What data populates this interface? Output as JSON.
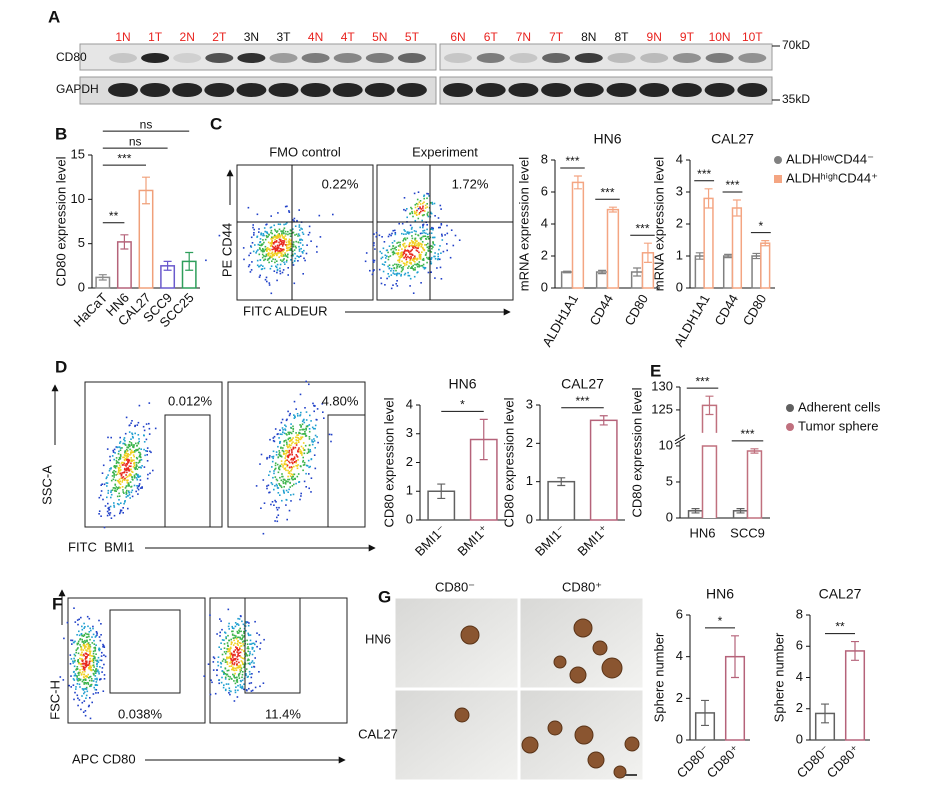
{
  "panel_labels": [
    "A",
    "B",
    "C",
    "D",
    "E",
    "F",
    "G"
  ],
  "blot": {
    "lanes": [
      [
        {
          "label": "1N",
          "color": "#e8231f"
        },
        {
          "label": "1T",
          "color": "#e8231f"
        },
        {
          "label": "2N",
          "color": "#e8231f"
        },
        {
          "label": "2T",
          "color": "#e8231f"
        },
        {
          "label": "3N",
          "color": "#111111"
        },
        {
          "label": "3T",
          "color": "#111111"
        },
        {
          "label": "4N",
          "color": "#e8231f"
        },
        {
          "label": "4T",
          "color": "#e8231f"
        },
        {
          "label": "5N",
          "color": "#e8231f"
        },
        {
          "label": "5T",
          "color": "#e8231f"
        }
      ],
      [
        {
          "label": "6N",
          "color": "#e8231f"
        },
        {
          "label": "6T",
          "color": "#e8231f"
        },
        {
          "label": "7N",
          "color": "#e8231f"
        },
        {
          "label": "7T",
          "color": "#e8231f"
        },
        {
          "label": "8N",
          "color": "#111111"
        },
        {
          "label": "8T",
          "color": "#111111"
        },
        {
          "label": "9N",
          "color": "#e8231f"
        },
        {
          "label": "9T",
          "color": "#e8231f"
        },
        {
          "label": "10N",
          "color": "#e8231f"
        },
        {
          "label": "10T",
          "color": "#e8231f"
        }
      ]
    ],
    "rows": [
      "CD80",
      "GAPDH"
    ],
    "size_markers": [
      "70kD",
      "35kD"
    ]
  },
  "flow": [
    {
      "y_axis": "PE CD44",
      "x_axis": "FITC ALDEUR",
      "plots": [
        {
          "title": "FMO control",
          "percent": "0.22%"
        },
        {
          "title": "Experiment",
          "percent": "1.72%"
        }
      ]
    },
    {
      "y_axis": "SSC-A",
      "x_axis": "FITC  BMI1",
      "plots": [
        {
          "percent": "0.012%"
        },
        {
          "percent": "4.80%"
        }
      ]
    },
    {
      "y_axis": "FSC-H",
      "x_axis": "APC CD80",
      "plots": [
        {
          "percent": "0.038%"
        },
        {
          "percent": "11.4%"
        }
      ]
    }
  ],
  "micrographs": {
    "columns": [
      "CD80⁻",
      "CD80⁺"
    ],
    "rows": [
      "HN6",
      "CAL27"
    ]
  },
  "chart_data": [
    {
      "type": "bar",
      "ylabel": "CD80 expression level",
      "categories": [
        "HaCaT",
        "HN6",
        "CAL27",
        "SCC9",
        "SCC25"
      ],
      "series": [
        {
          "colors": [
            "#8c8c8c",
            "#b5637a",
            "#f0a07a",
            "#6a5acd",
            "#2e9e5b"
          ],
          "values": [
            1.2,
            5.2,
            11,
            2.5,
            3
          ],
          "errors": [
            0.3,
            0.8,
            1.5,
            0.5,
            1.0
          ]
        }
      ],
      "ylim": [
        0,
        15
      ],
      "yticks": [
        0,
        5,
        10,
        15
      ],
      "annotations": [
        null,
        "**",
        "***",
        "ns",
        "ns"
      ]
    },
    {
      "type": "bar",
      "title": "HN6",
      "ylabel": "mRNA expression level",
      "categories": [
        "ALDH1A1",
        "CD44",
        "CD80"
      ],
      "series": [
        {
          "color": "#808080",
          "values": [
            1,
            1,
            1
          ],
          "errors": [
            0.05,
            0.1,
            0.25
          ]
        },
        {
          "color": "#f4a582",
          "values": [
            6.6,
            4.9,
            2.2
          ],
          "errors": [
            0.4,
            0.15,
            0.6
          ]
        }
      ],
      "ylim": [
        0,
        8
      ],
      "yticks": [
        0,
        2,
        4,
        6,
        8
      ],
      "annotations": [
        "***",
        "***",
        "***"
      ]
    },
    {
      "type": "bar",
      "title": "CAL27",
      "ylabel": "mRNA expression level",
      "categories": [
        "ALDH1A1",
        "CD44",
        "CD80"
      ],
      "series": [
        {
          "name": "ALDHˡᵒʷCD44⁻",
          "legend_marker": "circle",
          "color": "#808080",
          "values": [
            1,
            1,
            1
          ],
          "errors": [
            0.1,
            0.05,
            0.08
          ]
        },
        {
          "name": "ALDHʰⁱᵍʰCD44⁺",
          "legend_marker": "square",
          "color": "#f4a582",
          "values": [
            2.8,
            2.5,
            1.4
          ],
          "errors": [
            0.3,
            0.25,
            0.08
          ]
        }
      ],
      "ylim": [
        0,
        4
      ],
      "yticks": [
        0,
        1,
        2,
        3,
        4
      ],
      "annotations": [
        "***",
        "***",
        "*"
      ]
    },
    {
      "type": "bar",
      "title": "HN6",
      "ylabel": "CD80 expression level",
      "categories": [
        "BMI1⁻",
        "BMI1⁺"
      ],
      "series": [
        {
          "colors": [
            "#606060",
            "#b5637a"
          ],
          "values": [
            1.0,
            2.8
          ],
          "errors": [
            0.25,
            0.7
          ]
        }
      ],
      "ylim": [
        0,
        4
      ],
      "yticks": [
        0,
        1,
        2,
        3,
        4
      ],
      "annotations": [
        "*"
      ]
    },
    {
      "type": "bar",
      "title": "CAL27",
      "ylabel": "CD80 expression level",
      "categories": [
        "BMI1⁻",
        "BMI1⁺"
      ],
      "series": [
        {
          "colors": [
            "#606060",
            "#b5637a"
          ],
          "values": [
            1.0,
            2.6
          ],
          "errors": [
            0.1,
            0.12
          ]
        }
      ],
      "ylim": [
        0,
        3
      ],
      "yticks": [
        0,
        1,
        2,
        3
      ],
      "annotations": [
        "***"
      ]
    },
    {
      "type": "bar",
      "ylabel": "CD80 expression level",
      "categories": [
        "HN6",
        "SCC9"
      ],
      "series": [
        {
          "name": "Adherent cells",
          "legend_marker": "circle",
          "color": "#606060",
          "values": [
            1,
            1
          ],
          "errors": [
            0.3,
            0.3
          ]
        },
        {
          "name": "Tumor sphere",
          "legend_marker": "circle",
          "color": "#c0707e",
          "values": [
            126,
            9.3
          ],
          "errors": [
            2,
            0.3
          ]
        }
      ],
      "ylim": [
        0,
        130
      ],
      "ybreak": [
        10,
        120
      ],
      "yticks": [
        0,
        5,
        10,
        125,
        130
      ],
      "annotations": [
        "***",
        "***"
      ]
    },
    {
      "type": "bar",
      "title": "HN6",
      "ylabel": "Sphere number",
      "categories": [
        "CD80⁻",
        "CD80⁺"
      ],
      "series": [
        {
          "colors": [
            "#606060",
            "#b5637a"
          ],
          "values": [
            1.3,
            4.0
          ],
          "errors": [
            0.6,
            1.0
          ]
        }
      ],
      "ylim": [
        0,
        6
      ],
      "yticks": [
        0,
        2,
        4,
        6
      ],
      "annotations": [
        "*"
      ]
    },
    {
      "type": "bar",
      "title": "CAL27",
      "ylabel": "Sphere number",
      "categories": [
        "CD80⁻",
        "CD80⁺"
      ],
      "series": [
        {
          "colors": [
            "#606060",
            "#b5637a"
          ],
          "values": [
            1.7,
            5.7
          ],
          "errors": [
            0.6,
            0.6
          ]
        }
      ],
      "ylim": [
        0,
        8
      ],
      "yticks": [
        0,
        2,
        4,
        6,
        8
      ],
      "annotations": [
        "**"
      ]
    }
  ]
}
